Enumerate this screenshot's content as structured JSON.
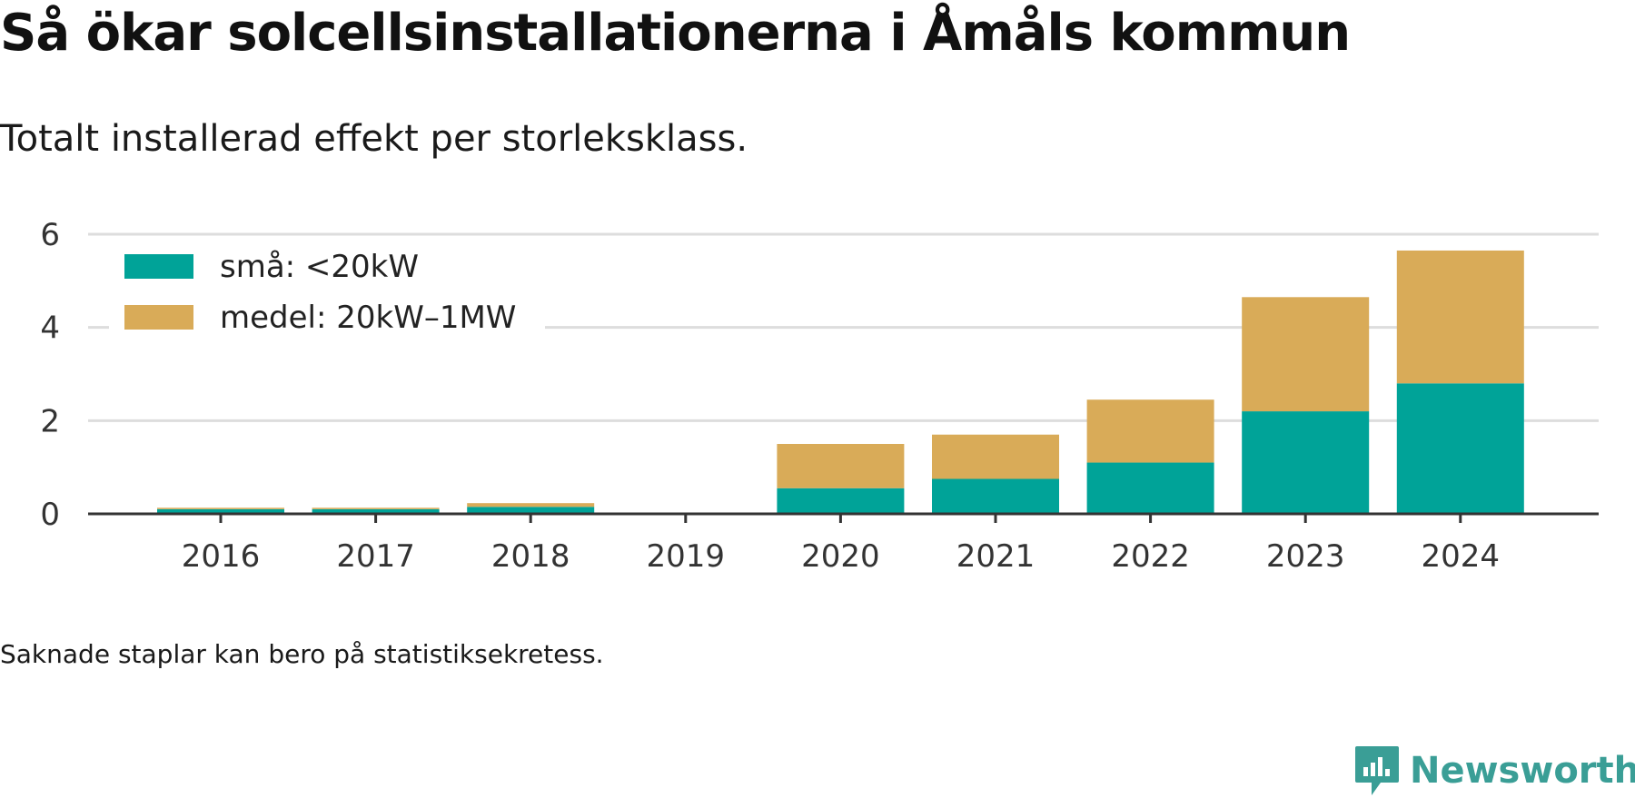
{
  "title": "Så ökar solcellsinstallationerna i Åmåls kommun",
  "subtitle": "Totalt installerad effekt per storleksklass.",
  "note": "Saknade staplar kan bero på statistiksekretess.",
  "brand": {
    "name": "Newsworthy",
    "color": "#3a9e96"
  },
  "chart_data": {
    "type": "bar",
    "stacked": true,
    "categories": [
      "2016",
      "2017",
      "2018",
      "2019",
      "2020",
      "2021",
      "2022",
      "2023",
      "2024"
    ],
    "series": [
      {
        "name": "små: <20kW",
        "color": "#00a398",
        "values": [
          0.1,
          0.1,
          0.15,
          null,
          0.55,
          0.75,
          1.1,
          2.2,
          2.8
        ]
      },
      {
        "name": "medel: 20kW–1MW",
        "color": "#d9ab58",
        "values": [
          0.03,
          0.03,
          0.08,
          null,
          0.95,
          0.95,
          1.35,
          2.45,
          2.85
        ]
      }
    ],
    "ylim": [
      0,
      6
    ],
    "yticks": [
      0,
      2,
      4,
      6
    ],
    "grid": true,
    "legend_position": "top-left",
    "xlabel": "",
    "ylabel": ""
  }
}
